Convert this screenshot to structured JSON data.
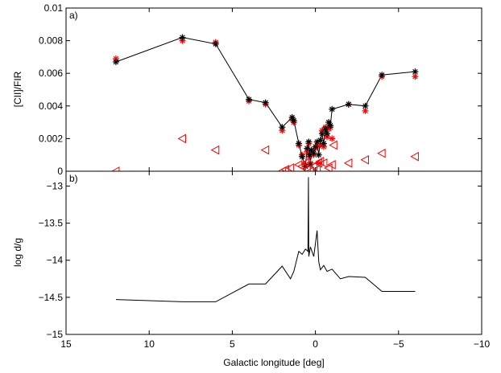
{
  "figure": {
    "xlabel": "Galactic longitude [deg]",
    "x_ticks": [
      15,
      10,
      5,
      0,
      -5,
      -10
    ],
    "x_tick_labels": [
      "15",
      "10",
      "5",
      "0",
      "−5",
      "−10"
    ],
    "xlim": [
      15,
      -10
    ]
  },
  "chart_data": [
    {
      "type": "scatter",
      "panel_label": "a)",
      "ylabel": "[CII]/FIR",
      "ylim": [
        0,
        0.01
      ],
      "y_ticks": [
        0,
        0.002,
        0.004,
        0.006,
        0.008,
        0.01
      ],
      "y_tick_labels": [
        "0",
        "0.002",
        "0.004",
        "0.006",
        "0.008",
        "0.01"
      ],
      "colors": {
        "line": "#000000",
        "red_series": "#ff0000",
        "triangle": "#ff0000"
      },
      "series": [
        {
          "marker": "black-asterisk-with-line",
          "x": [
            12,
            8,
            6,
            4,
            3,
            2,
            1.4,
            1.3,
            1.0,
            0.8,
            0.6,
            0.5,
            0.4,
            0.35,
            0.3,
            0.25,
            0.1,
            0.0,
            -0.1,
            -0.2,
            -0.3,
            -0.4,
            -0.5,
            -0.6,
            -0.7,
            -0.8,
            -0.9,
            -1.0,
            -2.0,
            -3.0,
            -4.0,
            -6.0
          ],
          "y": [
            0.0067,
            0.0082,
            0.0078,
            0.0044,
            0.0042,
            0.0027,
            0.0033,
            0.0031,
            0.0017,
            0.0009,
            0.0003,
            0.0014,
            0.0018,
            0.001,
            0.0004,
            0.0013,
            0.0011,
            0.0015,
            0.0018,
            0.001,
            0.0019,
            0.0023,
            0.0017,
            0.0026,
            0.0023,
            0.003,
            0.0028,
            0.0038,
            0.0041,
            0.004,
            0.0059,
            0.0061
          ]
        },
        {
          "marker": "red-asterisk",
          "x": [
            12,
            8,
            6,
            4,
            3,
            2,
            1.4,
            1.3,
            1.0,
            0.8,
            0.6,
            0.5,
            0.4,
            0.35,
            0.3,
            0.25,
            0.1,
            0.0,
            -0.1,
            -0.2,
            -0.3,
            -0.4,
            -0.5,
            -0.6,
            -0.7,
            -0.8,
            -0.9,
            -1.0,
            -2.0,
            -3.0,
            -4.0,
            -6.0
          ],
          "y": [
            0.0069,
            0.008,
            0.0079,
            0.0043,
            0.0041,
            0.0025,
            0.0032,
            0.003,
            0.0016,
            0.001,
            0.0004,
            0.0012,
            0.0017,
            0.0009,
            0.0005,
            0.0012,
            0.001,
            0.0014,
            0.0016,
            0.0005,
            0.0016,
            0.0025,
            0.0015,
            0.0027,
            0.0021,
            0.0026,
            0.0027,
            0.002,
            0.0041,
            0.0037,
            0.0058,
            0.0058
          ]
        },
        {
          "marker": "red-open-triangle-left",
          "x": [
            12,
            8,
            6,
            3,
            2,
            1.8,
            1.5,
            1.0,
            0.8,
            0.6,
            0.5,
            0.3,
            0.1,
            -0.1,
            -0.2,
            -0.3,
            -0.5,
            -0.8,
            -1.0,
            -1.1,
            -2.0,
            -3.0,
            -4.0,
            -6.0
          ],
          "y": [
            0.0,
            0.002,
            0.0013,
            0.0013,
            0.0,
            0.0001,
            0.0002,
            0.0004,
            0.0003,
            0.0005,
            0.0001,
            0.0,
            0.0003,
            0.0001,
            0.0005,
            0.0006,
            0.0005,
            0.0002,
            0.0004,
            0.0016,
            0.0005,
            0.0007,
            0.0011,
            0.0009
          ]
        }
      ]
    },
    {
      "type": "line",
      "panel_label": "b)",
      "ylabel": "log d/g",
      "ylim": [
        -15,
        -12.8
      ],
      "y_ticks": [
        -15,
        -14.5,
        -14,
        -13.5,
        -13
      ],
      "y_tick_labels": [
        "−15",
        "−14.5",
        "−14",
        "−13.5",
        "−13"
      ],
      "colors": {
        "line": "#000000"
      },
      "series": [
        {
          "x": [
            12,
            8,
            6,
            4,
            3,
            2,
            1.5,
            1.3,
            1.0,
            0.8,
            0.6,
            0.45,
            0.42,
            0.4,
            0.3,
            0.1,
            -0.1,
            -0.2,
            -0.3,
            -0.5,
            -0.7,
            -1.0,
            -1.5,
            -2.0,
            -3.0,
            -4.0,
            -6.0
          ],
          "y": [
            -14.53,
            -14.56,
            -14.56,
            -14.32,
            -14.32,
            -14.08,
            -14.25,
            -14.15,
            -13.88,
            -13.92,
            -13.85,
            -13.88,
            -12.88,
            -13.95,
            -13.82,
            -13.95,
            -13.6,
            -14.02,
            -14.13,
            -14.07,
            -14.15,
            -14.12,
            -14.25,
            -14.22,
            -14.23,
            -14.42,
            -14.42
          ]
        }
      ]
    }
  ]
}
